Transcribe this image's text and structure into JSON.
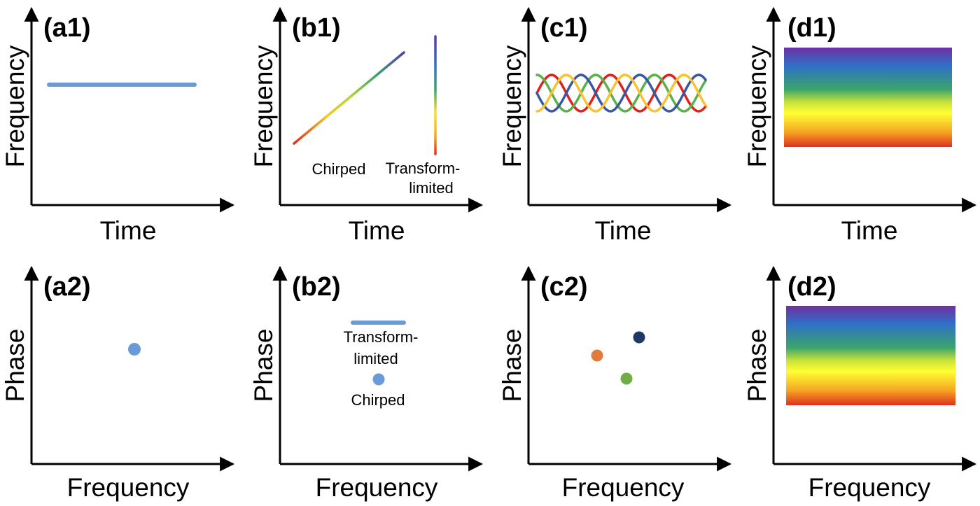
{
  "panels": {
    "a1": {
      "label": "(a1)",
      "xlabel": "Time",
      "ylabel": "Frequency"
    },
    "b1": {
      "label": "(b1)",
      "xlabel": "Time",
      "ylabel": "Frequency",
      "annotations": {
        "chirped": "Chirped",
        "tl_line1": "Transform-",
        "tl_line2": "limited"
      }
    },
    "c1": {
      "label": "(c1)",
      "xlabel": "Time",
      "ylabel": "Frequency"
    },
    "d1": {
      "label": "(d1)",
      "xlabel": "Time",
      "ylabel": "Frequency"
    },
    "a2": {
      "label": "(a2)",
      "xlabel": "Frequency",
      "ylabel": "Phase"
    },
    "b2": {
      "label": "(b2)",
      "xlabel": "Frequency",
      "ylabel": "Phase",
      "annotations": {
        "tl_line1": "Transform-",
        "tl_line2": "limited",
        "chirped": "Chirped"
      }
    },
    "c2": {
      "label": "(c2)",
      "xlabel": "Frequency",
      "ylabel": "Phase"
    },
    "d2": {
      "label": "(d2)",
      "xlabel": "Frequency",
      "ylabel": "Phase"
    }
  },
  "colors": {
    "axis": "#000000",
    "steady_line": "#6a9bd8",
    "dot_blue": "#6a9bd8",
    "dot_orange": "#e07b39",
    "dot_green": "#70ad47",
    "dot_navy": "#203864",
    "wave_red": "#e0201b",
    "wave_yellow": "#f7c233",
    "wave_green": "#5bb04a",
    "wave_blue": "#3a57a6",
    "rainbow": [
      "#7030a0",
      "#2f6fc8",
      "#3aa56a",
      "#c9e23a",
      "#ffff33",
      "#f5a623",
      "#e03020"
    ]
  }
}
